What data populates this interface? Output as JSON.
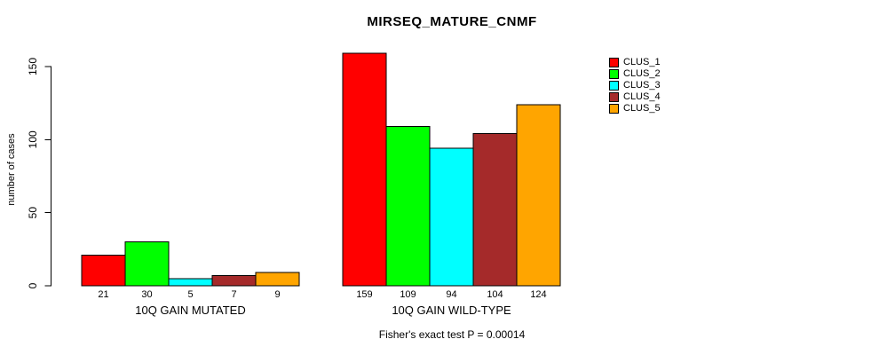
{
  "chart_data": {
    "type": "bar",
    "title": "MIRSEQ_MATURE_CNMF",
    "ylabel": "number of cases",
    "xlabel": "",
    "ylim": [
      0,
      160
    ],
    "yticks": [
      0,
      50,
      100,
      150
    ],
    "grid": false,
    "legend_position": "right",
    "categories": [
      "10Q GAIN MUTATED",
      "10Q GAIN WILD-TYPE"
    ],
    "series": [
      {
        "name": "CLUS_1",
        "color": "#FF0000",
        "values": [
          21,
          159
        ]
      },
      {
        "name": "CLUS_2",
        "color": "#00FF00",
        "values": [
          30,
          109
        ]
      },
      {
        "name": "CLUS_3",
        "color": "#00FFFF",
        "values": [
          5,
          94
        ]
      },
      {
        "name": "CLUS_4",
        "color": "#A52A2A",
        "values": [
          7,
          104
        ]
      },
      {
        "name": "CLUS_5",
        "color": "#FFA500",
        "values": [
          9,
          124
        ]
      }
    ],
    "bar_value_labels_shown": true,
    "annotation": "Fisher's exact test P = 0.00014"
  }
}
